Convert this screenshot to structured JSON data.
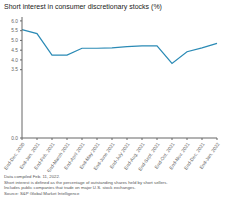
{
  "chart_data": {
    "type": "line",
    "title": "Short interest in consumer discretionary stocks (%)",
    "categories": [
      "End-Dec. 2020",
      "End-Jan. 2021",
      "End-Feb. 2021",
      "End-March 2021",
      "End-April 2021",
      "End-May 2021",
      "End-June 2021",
      "End-July 2021",
      "End-Aug. 2021",
      "End-Sept. 2021",
      "End-Oct. 2021",
      "End-Nov. 2021",
      "End-Dec. 2021",
      "End-Jan. 2022"
    ],
    "values": [
      5.55,
      5.35,
      4.25,
      4.25,
      4.6,
      4.6,
      4.62,
      4.68,
      4.72,
      4.72,
      3.82,
      4.42,
      4.62,
      4.85
    ],
    "color": "#2a8ab5",
    "ylim": [
      0.0,
      6.2
    ],
    "yticks": [
      {
        "value": 0,
        "label": "0.0"
      },
      3.5,
      {
        "value": 4,
        "label": "4.0"
      },
      4.5,
      {
        "value": 5,
        "label": "5.0"
      },
      5.5,
      {
        "value": 6,
        "label": "6.0"
      }
    ],
    "grid": false,
    "annotations": [
      "Data compiled Feb. 11, 2022.",
      "Short interest is defined as the percentage of outstanding shares held by short sellers.",
      "Includes public companies that trade on major U.S. stock exchanges.",
      "Source: S&P Global Market Intelligence"
    ]
  }
}
